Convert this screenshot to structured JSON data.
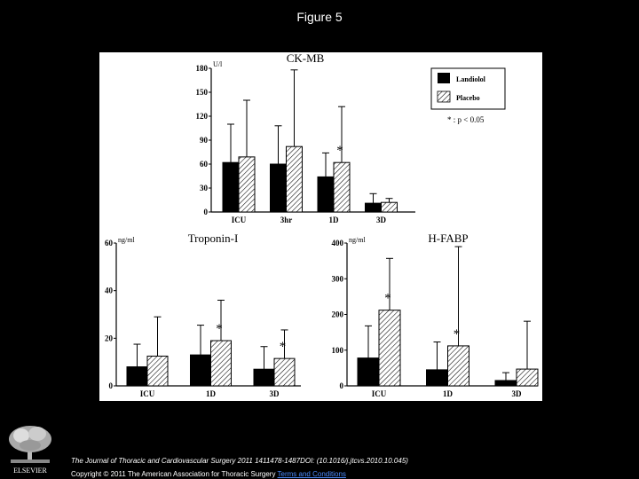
{
  "figure": {
    "title": "Figure 5"
  },
  "chart_data": [
    {
      "type": "bar",
      "title": "CK-MB",
      "unit": "U/l",
      "categories": [
        "ICU",
        "3hr",
        "1D",
        "3D"
      ],
      "ylim": [
        0,
        180
      ],
      "yticks": [
        "0",
        "30",
        "60",
        "90",
        "120",
        "150",
        "180"
      ],
      "series": [
        {
          "name": "Landiolol",
          "values": [
            62,
            60,
            44,
            11
          ],
          "errors": [
            48,
            48,
            30,
            12
          ]
        },
        {
          "name": "Placebo",
          "values": [
            69,
            82,
            62,
            12
          ],
          "errors": [
            71,
            96,
            70,
            5
          ]
        }
      ],
      "significance": [
        null,
        null,
        "*",
        null
      ],
      "legend": {
        "position": "top-right",
        "entries": [
          "Landiolol",
          "Placebo"
        ],
        "note": "* : p < 0.05"
      }
    },
    {
      "type": "bar",
      "title": "Troponin-I",
      "unit": "ng/ml",
      "categories": [
        "ICU",
        "1D",
        "3D"
      ],
      "ylim": [
        0,
        60
      ],
      "yticks": [
        "0",
        "20",
        "40",
        "60"
      ],
      "series": [
        {
          "name": "Landiolol",
          "values": [
            8,
            13,
            7
          ],
          "errors": [
            9.5,
            12.5,
            9.5
          ]
        },
        {
          "name": "Placebo",
          "values": [
            12.5,
            19,
            11.5
          ],
          "errors": [
            16.5,
            17,
            12
          ]
        }
      ],
      "significance": [
        null,
        "*",
        "*"
      ]
    },
    {
      "type": "bar",
      "title": "H-FABP",
      "unit": "ng/ml",
      "categories": [
        "ICU",
        "1D",
        "3D"
      ],
      "ylim": [
        0,
        400
      ],
      "yticks": [
        "0",
        "100",
        "200",
        "300",
        "400"
      ],
      "series": [
        {
          "name": "Landiolol",
          "values": [
            78,
            45,
            15
          ],
          "errors": [
            90,
            78,
            22
          ]
        },
        {
          "name": "Placebo",
          "values": [
            212,
            112,
            47
          ],
          "errors": [
            145,
            278,
            134
          ]
        }
      ],
      "significance": [
        "*",
        "*",
        null
      ]
    }
  ],
  "caption": {
    "citation": "The Journal of Thoracic and Cardiovascular Surgery 2011 1411478-1487DOI: (10.1016/j.jtcvs.2010.10.045)",
    "copyright": "Copyright © 2011 The American Association for Thoracic Surgery",
    "link": "Terms and Conditions"
  },
  "publisher": {
    "logo_text": "ELSEVIER",
    "logo_icon": "elsevier-tree-icon"
  },
  "colors": {
    "background": "#000000",
    "panel": "#ffffff",
    "landiolol_fill": "#000000",
    "placebo_hatch": "#000000",
    "link": "#4c8cff"
  }
}
